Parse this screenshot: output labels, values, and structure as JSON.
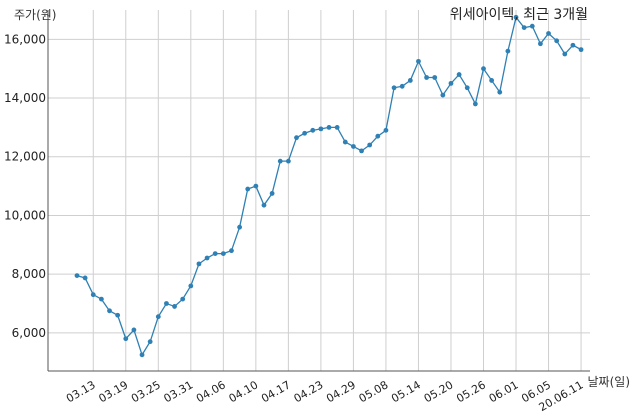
{
  "chart_data": {
    "type": "line",
    "title": "위세아이텍, 최근 3개월",
    "ylabel": "주가(원)",
    "xlabel": "날짜(일)",
    "ylim": [
      4700,
      17000
    ],
    "yticks": [
      6000,
      8000,
      10000,
      12000,
      14000,
      16000
    ],
    "ytick_labels": [
      "6,000",
      "8,000",
      "10,000",
      "12,000",
      "14,000",
      "16,000"
    ],
    "xtick_labels": [
      "03.13",
      "03.19",
      "03.25",
      "03.31",
      "04.06",
      "04.10",
      "04.17",
      "04.23",
      "04.29",
      "05.08",
      "05.14",
      "05.20",
      "05.26",
      "06.01",
      "06.05",
      "20.06.11"
    ],
    "xtick_positions": [
      2,
      6,
      10,
      14,
      18,
      22,
      26,
      30,
      34,
      38,
      42,
      46,
      50,
      54,
      58,
      62
    ],
    "grid": true,
    "series": [
      {
        "color": "#2f80b4",
        "values": [
          7950,
          7870,
          7300,
          7150,
          6750,
          6600,
          5800,
          6100,
          5250,
          5700,
          6550,
          7000,
          6900,
          7150,
          7600,
          8350,
          8550,
          8700,
          8700,
          8800,
          9600,
          10900,
          11000,
          10350,
          10750,
          11850,
          11850,
          12650,
          12800,
          12900,
          12950,
          13000,
          13000,
          12500,
          12350,
          12200,
          12400,
          12700,
          12900,
          14350,
          14400,
          14600,
          15250,
          14700,
          14700,
          14100,
          14500,
          14800,
          14350,
          13800,
          15000,
          14600,
          14200,
          15600,
          16750,
          16400,
          16450,
          15850,
          16200,
          15950,
          15500,
          15800,
          15650
        ]
      }
    ]
  }
}
